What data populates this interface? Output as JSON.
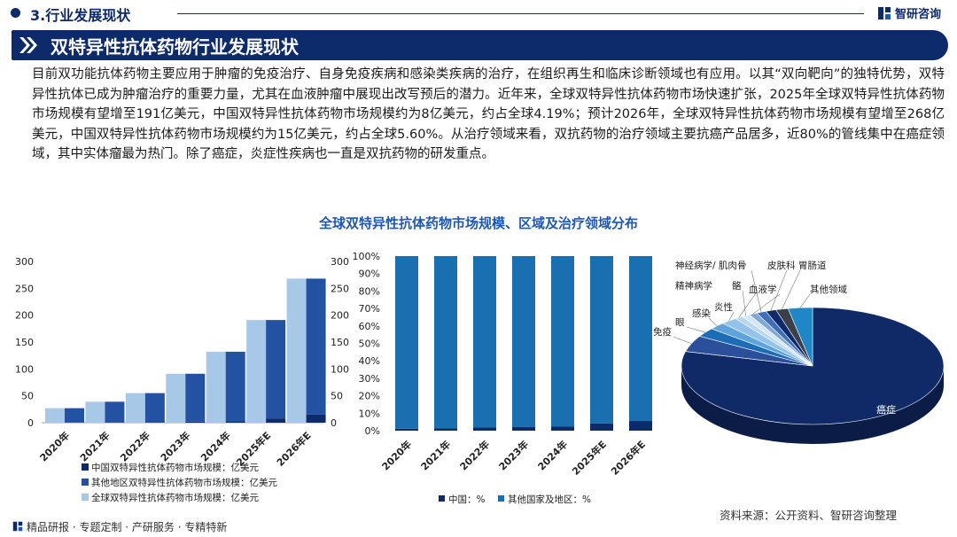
{
  "header": {
    "section_title": "3.行业发展现状",
    "logo_text": "智研咨询"
  },
  "banner": {
    "title": "双特异性抗体药物行业发展现状"
  },
  "intro_text": "目前双功能抗体药物主要应用于肿瘤的免疫治疗、自身免疫疾病和感染类疾病的治疗，在组织再生和临床诊断领域也有应用。以其“双向靶向”的独特优势，双特异性抗体已成为肿瘤治疗的重要力量，尤其在血液肿瘤中展现出改写预后的潜力。近年来，全球双特异性抗体药物市场快速扩张，2025年全球双特异性抗体药物市场规模有望增至191亿美元，中国双特异性抗体药物市场规模约为8亿美元，约占全球4.19%；预计2026年，全球双特异性抗体药物市场规模有望增至268亿美元，中国双特异性抗体药物市场规模约为15亿美元，约占全球5.60%。从治疗领域来看，双抗药物的治疗领域主要抗癌产品居多，近80%的管线集中在癌症领域，其中实体瘤最为热门。除了癌症，炎症性疾病也一直是双抗药物的研发重点。",
  "chart_title": "全球双特异性抗体药物市场规模、区域及治疗领域分布",
  "footer": {
    "left": "精品研报 · 专题定制 · 产研服务 · 专精特新",
    "right": "资料来源：公开资料、智研咨询整理"
  },
  "colors": {
    "navy": "#0d2a6b",
    "china": "#0d2a6b",
    "other": "#2452a3",
    "global": "#a8c8e8",
    "share_other": "#1a6fb0",
    "title_blue": "#1e58b4"
  },
  "chart_data": [
    {
      "id": "market-size",
      "type": "bar",
      "categories": [
        "2020年",
        "2021年",
        "2022年",
        "2023年",
        "2024年",
        "2025年E",
        "2026年E"
      ],
      "series": [
        {
          "name": "中国双特异性抗体药物市场规模：亿美元",
          "values": [
            0.3,
            0.5,
            1,
            2,
            3,
            8,
            15
          ]
        },
        {
          "name": "其他地区双特异性抗体药物市场规模：亿美元",
          "values": [
            26.7,
            38.5,
            54,
            89,
            129,
            183,
            253
          ]
        },
        {
          "name": "全球双特异性抗体药物市场规模：亿美元",
          "values": [
            27,
            39,
            55,
            91,
            132,
            191,
            268
          ]
        }
      ],
      "ylim": [
        0,
        300
      ],
      "yticks": [
        0,
        50,
        100,
        150,
        200,
        250,
        300
      ],
      "legend": "bottom"
    },
    {
      "id": "region-share",
      "type": "bar",
      "stacked": true,
      "categories": [
        "2020年",
        "2021年",
        "2022年",
        "2023年",
        "2024年",
        "2025年E",
        "2026年E"
      ],
      "series": [
        {
          "name": "中国：%",
          "values": [
            1.1,
            1.3,
            1.8,
            2.2,
            2.3,
            4.19,
            5.6
          ]
        },
        {
          "name": "其他国家及地区：%",
          "values": [
            98.9,
            98.7,
            98.2,
            97.8,
            97.7,
            95.81,
            94.4
          ]
        }
      ],
      "ylim": [
        0,
        100
      ],
      "yticks": [
        "0%",
        "10%",
        "20%",
        "30%",
        "40%",
        "50%",
        "60%",
        "70%",
        "80%",
        "90%",
        "100%"
      ],
      "legend": "bottom"
    },
    {
      "id": "therapy-area",
      "type": "pie",
      "labels": [
        "癌症",
        "免疫",
        "眼",
        "感染",
        "炎性",
        "精神病学",
        "骼",
        "血液学",
        "神经病学/ 肌肉骨",
        "皮肤科",
        "胃肠道",
        "其他领域"
      ],
      "values": [
        79,
        4.5,
        2.5,
        2.0,
        2.0,
        1.0,
        1.0,
        1.0,
        1.2,
        1.3,
        1.5,
        3.0
      ],
      "colors": [
        "#0f2a66",
        "#2c4f9c",
        "#1c6db5",
        "#5fa3dc",
        "#93c3ea",
        "#b9d7f2",
        "#d4e6f7",
        "#7fa8d8",
        "#3e6fb8",
        "#0d2a6b",
        "#3a3f4a",
        "#1f86c8"
      ],
      "legend": "callout"
    }
  ]
}
